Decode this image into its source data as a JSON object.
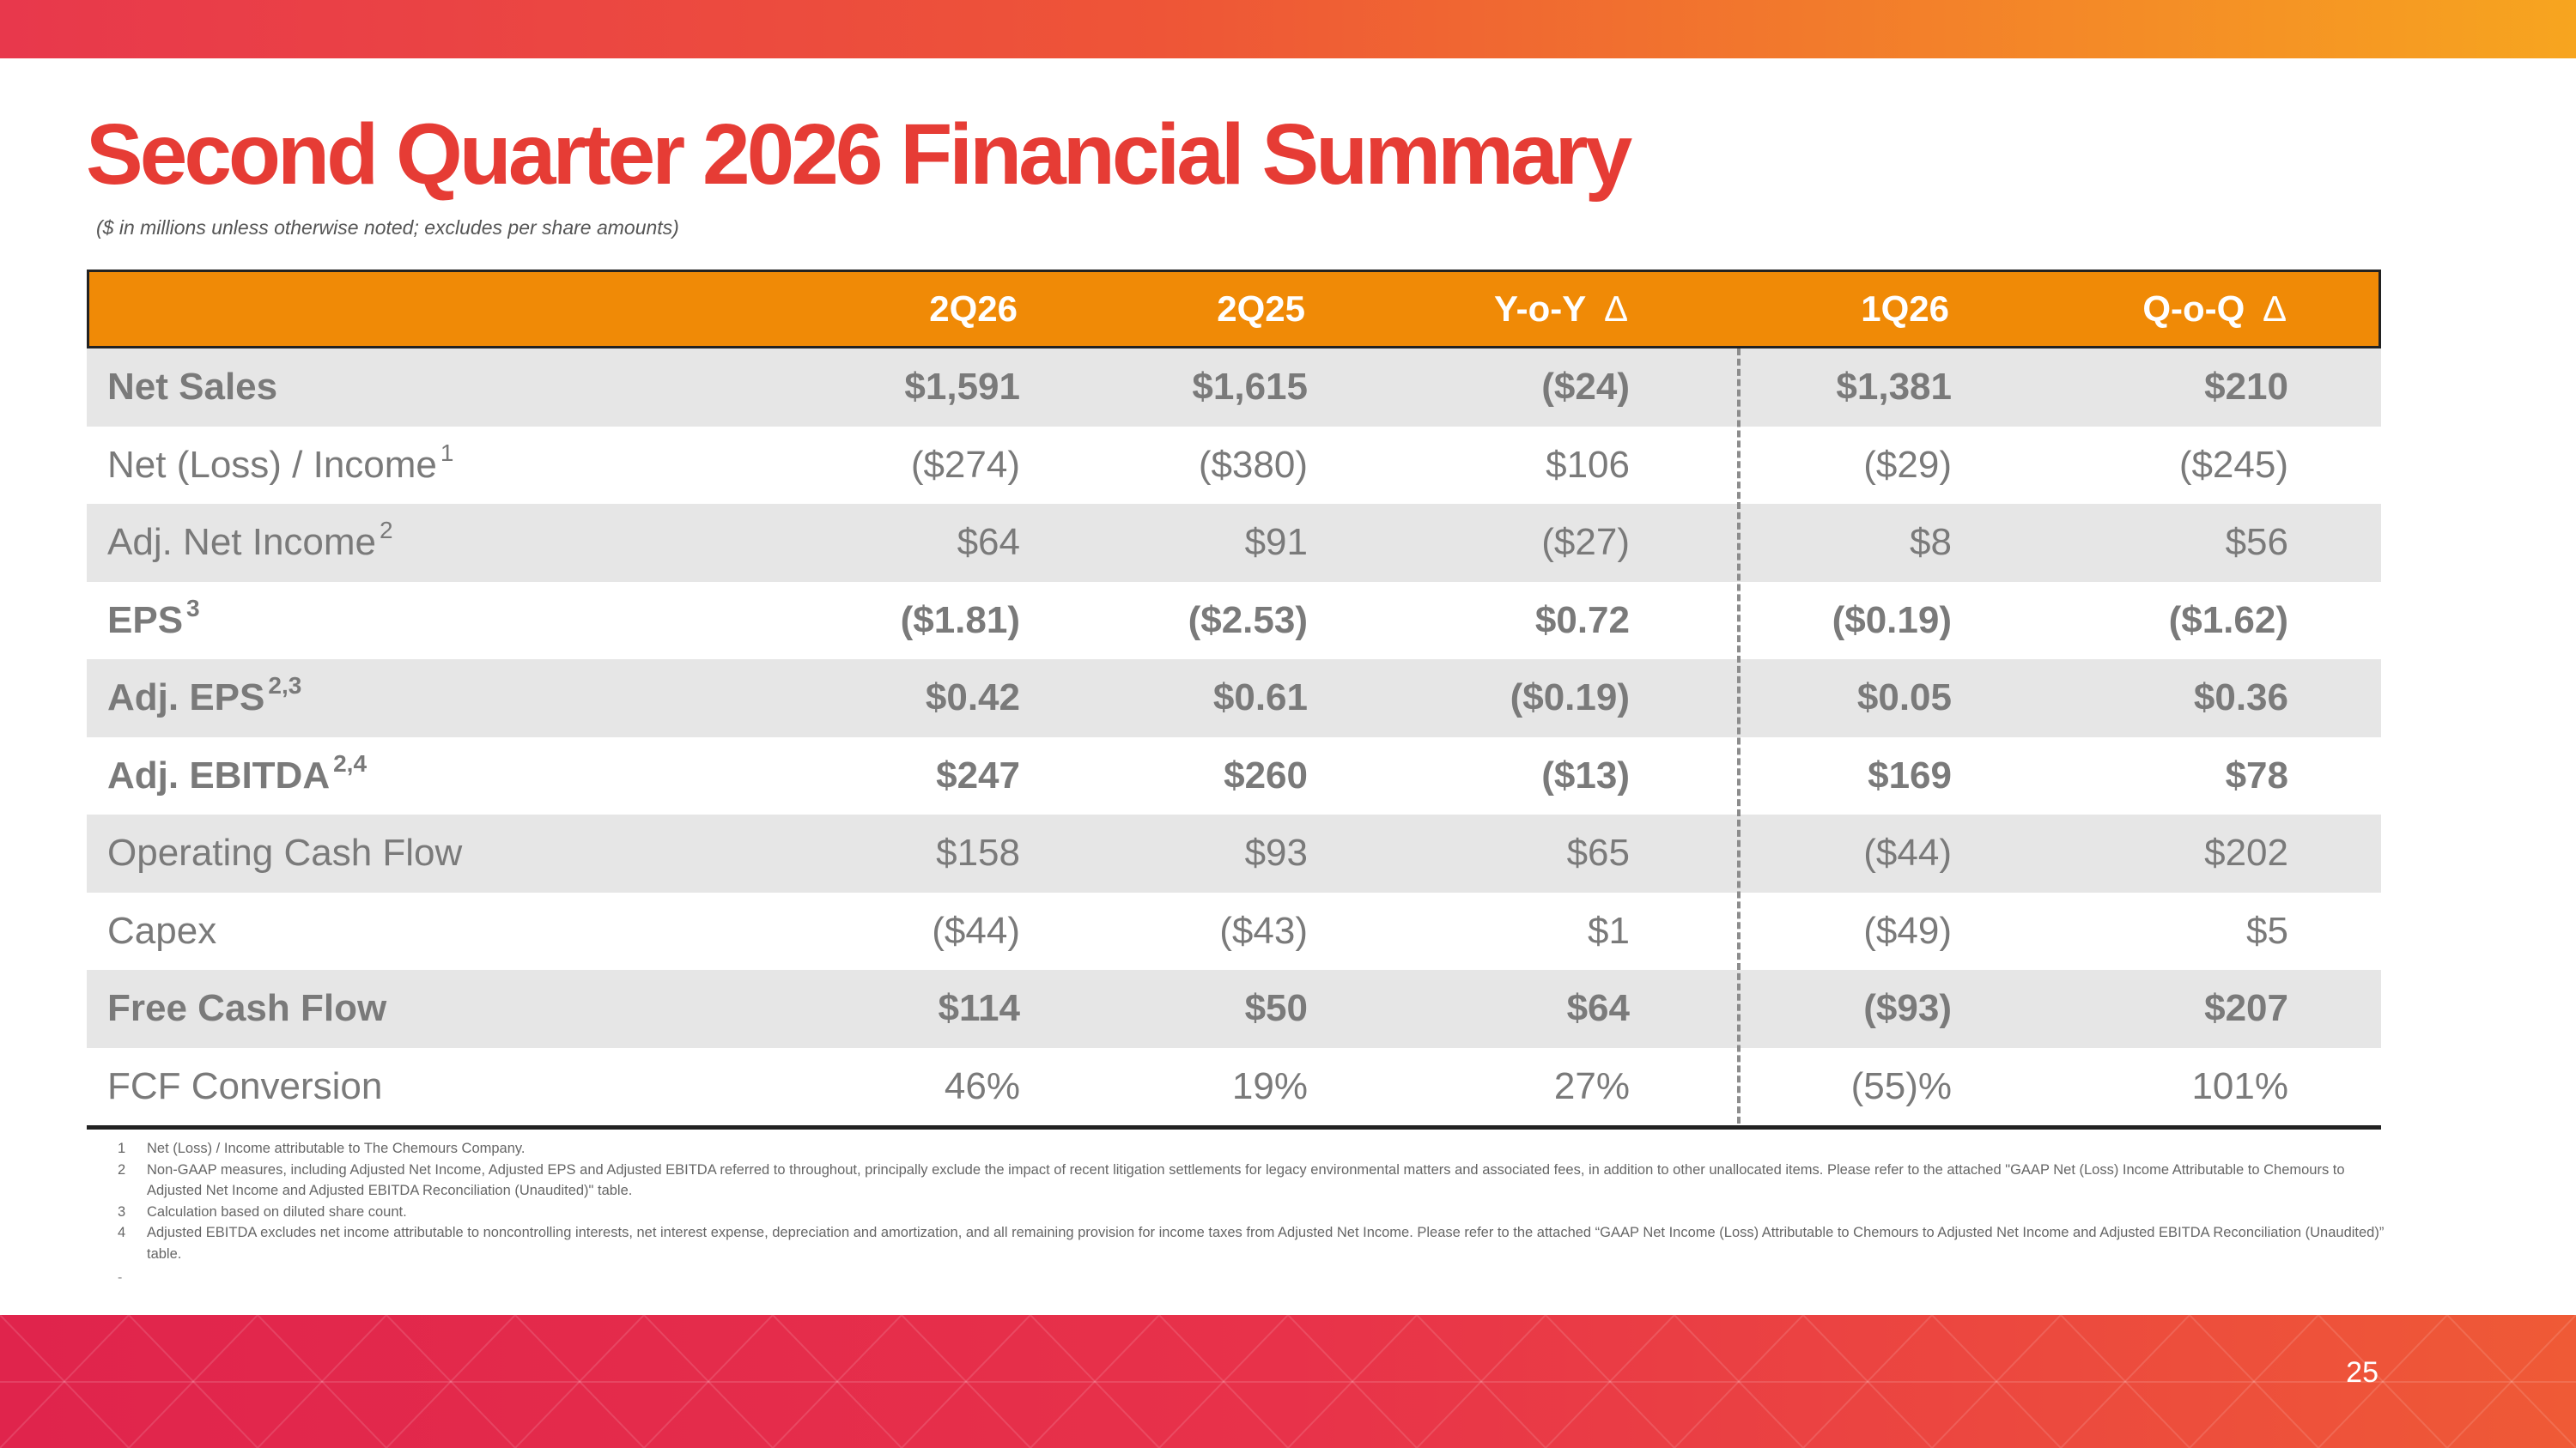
{
  "slide": {
    "title": "Second Quarter 2026 Financial Summary",
    "subtitle": "($ in millions unless otherwise noted; excludes per share amounts)",
    "page_number": "25",
    "brand_colors": {
      "title": "#e63c35",
      "header": "#f08a06",
      "band_start": "#e0244c",
      "band_end": "#f7a51f"
    }
  },
  "table": {
    "headers": [
      "2Q26",
      "2Q25",
      "Y-o-Y",
      "1Q26",
      "Q-o-Q"
    ],
    "delta_symbol": "∆",
    "rows": [
      {
        "label": "Net Sales",
        "sup": "",
        "values": [
          "$1,591",
          "$1,615",
          "($24)",
          "$1,381",
          "$210"
        ]
      },
      {
        "label": "Net (Loss) / Income",
        "sup": "1",
        "values": [
          "($274)",
          "($380)",
          "$106",
          "($29)",
          "($245)"
        ]
      },
      {
        "label": "Adj. Net Income",
        "sup": "2",
        "values": [
          "$64",
          "$91",
          "($27)",
          "$8",
          "$56"
        ]
      },
      {
        "label": "EPS",
        "sup": "3",
        "values": [
          "($1.81)",
          "($2.53)",
          "$0.72",
          "($0.19)",
          "($1.62)"
        ]
      },
      {
        "label": "Adj. EPS",
        "sup": "2,3",
        "values": [
          "$0.42",
          "$0.61",
          "($0.19)",
          "$0.05",
          "$0.36"
        ]
      },
      {
        "label": "Adj. EBITDA",
        "sup": "2,4",
        "values": [
          "$247",
          "$260",
          "($13)",
          "$169",
          "$78"
        ]
      },
      {
        "label": "Operating Cash Flow",
        "sup": "",
        "values": [
          "$158",
          "$93",
          "$65",
          "($44)",
          "$202"
        ]
      },
      {
        "label": "Capex",
        "sup": "",
        "values": [
          "($44)",
          "($43)",
          "$1",
          "($49)",
          "$5"
        ]
      },
      {
        "label": "Free Cash Flow",
        "sup": "",
        "values": [
          "$114",
          "$50",
          "$64",
          "($93)",
          "$207"
        ]
      },
      {
        "label": "FCF Conversion",
        "sup": "",
        "values": [
          "46%",
          "19%",
          "27%",
          "(55)%",
          "101%"
        ]
      }
    ]
  },
  "footnotes": [
    {
      "num": "1",
      "text": "Net (Loss) / Income attributable to The Chemours Company."
    },
    {
      "num": "2",
      "text": "Non-GAAP measures, including Adjusted Net Income, Adjusted EPS and Adjusted EBITDA referred to throughout, principally exclude the impact of recent litigation settlements for legacy environmental matters and associated fees, in addition to other unallocated items. Please refer to the attached \"GAAP Net (Loss) Income Attributable to Chemours to Adjusted Net Income and Adjusted EBITDA Reconciliation (Unaudited)\" table."
    },
    {
      "num": "3",
      "text": "Calculation based on diluted share count."
    },
    {
      "num": "4",
      "text": "Adjusted EBITDA excludes net income attributable to noncontrolling interests, net interest expense, depreciation and amortization, and all remaining provision for income taxes from Adjusted Net Income. Please refer to the attached “GAAP  Net Income (Loss)  Attributable to Chemours to Adjusted Net Income and Adjusted EBITDA Reconciliation (Unaudited)” table."
    }
  ],
  "trailing_mark": "-"
}
